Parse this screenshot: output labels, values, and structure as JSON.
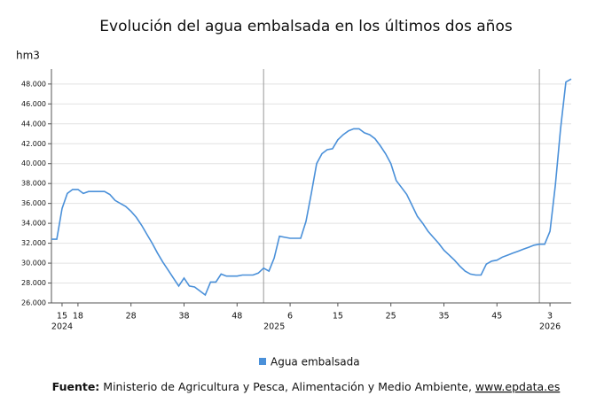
{
  "chart_data": {
    "type": "line",
    "title": "Evolución del agua embalsada en los últimos dos años",
    "y_label": "hm3",
    "categories": [
      null,
      null,
      "15",
      null,
      null,
      "18",
      null,
      null,
      null,
      null,
      null,
      null,
      null,
      null,
      null,
      "28",
      null,
      null,
      null,
      null,
      null,
      null,
      null,
      null,
      null,
      "38",
      null,
      null,
      null,
      null,
      null,
      null,
      null,
      null,
      null,
      "48",
      null,
      null,
      null,
      null,
      null,
      null,
      null,
      null,
      null,
      "6",
      null,
      null,
      null,
      null,
      null,
      null,
      null,
      null,
      "15",
      null,
      null,
      null,
      null,
      null,
      null,
      null,
      null,
      null,
      "25",
      null,
      null,
      null,
      null,
      null,
      null,
      null,
      null,
      null,
      "35",
      null,
      null,
      null,
      null,
      null,
      null,
      null,
      null,
      null,
      "45",
      null,
      null,
      null,
      null,
      null,
      null,
      null,
      null,
      null,
      "3",
      null,
      null,
      null,
      null
    ],
    "category_years": [
      "2024",
      null,
      null,
      null,
      null,
      null,
      null,
      null,
      null,
      null,
      null,
      null,
      null,
      null,
      null,
      null,
      null,
      null,
      null,
      null,
      null,
      null,
      null,
      null,
      null,
      null,
      null,
      null,
      null,
      null,
      null,
      null,
      null,
      null,
      null,
      null,
      null,
      null,
      null,
      null,
      "2025",
      null,
      null,
      null,
      null,
      null,
      null,
      null,
      null,
      null,
      null,
      null,
      null,
      null,
      null,
      null,
      null,
      null,
      null,
      null,
      null,
      null,
      null,
      null,
      null,
      null,
      null,
      null,
      null,
      null,
      null,
      null,
      null,
      null,
      null,
      null,
      null,
      null,
      null,
      null,
      null,
      null,
      null,
      null,
      null,
      null,
      null,
      null,
      null,
      null,
      null,
      null,
      "2026",
      null,
      null,
      null,
      null,
      null,
      null
    ],
    "series": [
      {
        "name": "Agua embalsada",
        "color": "#4a90d9",
        "values": [
          32400,
          32400,
          35500,
          37000,
          37400,
          37400,
          37000,
          37200,
          37200,
          37200,
          37200,
          36900,
          36300,
          36000,
          35700,
          35200,
          34600,
          33800,
          32900,
          32000,
          31000,
          30100,
          29300,
          28500,
          27700,
          28500,
          27700,
          27600,
          27200,
          26800,
          28100,
          28100,
          28900,
          28700,
          28700,
          28700,
          28800,
          28800,
          28800,
          29000,
          29500,
          29200,
          30500,
          32700,
          32600,
          32500,
          32500,
          32500,
          34200,
          37000,
          40000,
          41000,
          41400,
          41500,
          42400,
          42900,
          43300,
          43500,
          43500,
          43100,
          42900,
          42500,
          41800,
          41000,
          40000,
          38300,
          37600,
          36900,
          35800,
          34700,
          34000,
          33200,
          32600,
          32000,
          31300,
          30800,
          30300,
          29700,
          29200,
          28900,
          28800,
          28800,
          29900,
          30200,
          30300,
          30600,
          30800,
          31000,
          31200,
          31400,
          31600,
          31800,
          31900,
          31900,
          33200,
          37800,
          43500,
          48200,
          48500
        ]
      }
    ],
    "ylim": [
      26000,
      49500
    ],
    "yticks": [
      {
        "value": 26000,
        "label": "26.000"
      },
      {
        "value": 28000,
        "label": "28.000"
      },
      {
        "value": 30000,
        "label": "30.000"
      },
      {
        "value": 32000,
        "label": "32.000"
      },
      {
        "value": 34000,
        "label": "34.000"
      },
      {
        "value": 36000,
        "label": "36.000"
      },
      {
        "value": 38000,
        "label": "38.000"
      },
      {
        "value": 40000,
        "label": "40.000"
      },
      {
        "value": 42000,
        "label": "42.000"
      },
      {
        "value": 44000,
        "label": "44.000"
      },
      {
        "value": 46000,
        "label": "46.000"
      },
      {
        "value": 48000,
        "label": "48.000"
      }
    ],
    "grid": true,
    "source_label": "Fuente:",
    "source_text": "Ministerio de Agricultura y Pesca, Alimentación y Medio Ambiente, ",
    "source_link": "www.epdata.es"
  }
}
